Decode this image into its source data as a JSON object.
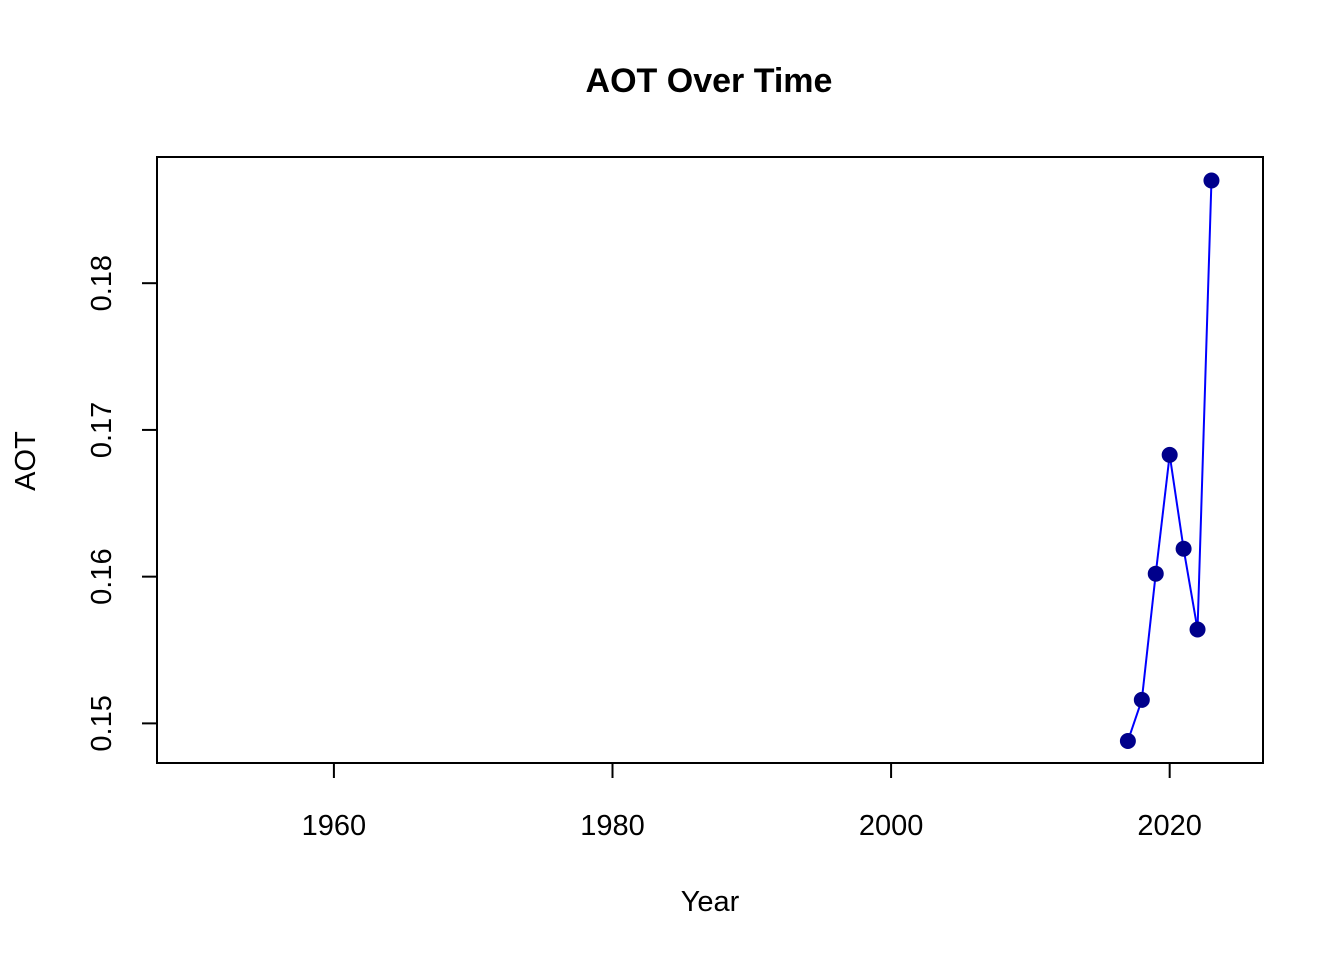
{
  "chart_data": {
    "type": "line",
    "title": "AOT Over Time",
    "xlabel": "Year",
    "ylabel": "AOT",
    "xlim": [
      1947.3,
      2026.7
    ],
    "ylim": [
      0.1473,
      0.1886
    ],
    "x_ticks": [
      1960,
      1980,
      2000,
      2020
    ],
    "x_tick_labels": [
      "1960",
      "1980",
      "2000",
      "2020"
    ],
    "y_ticks": [
      0.15,
      0.16,
      0.17,
      0.18
    ],
    "y_tick_labels": [
      "0.15",
      "0.16",
      "0.17",
      "0.18"
    ],
    "grid": false,
    "series": [
      {
        "x": [
          2017,
          2018,
          2019,
          2020,
          2021,
          2022,
          2023
        ],
        "values": [
          0.1488,
          0.1516,
          0.1602,
          0.1683,
          0.1619,
          0.1564,
          0.187
        ],
        "line_color": "#0000ff",
        "marker_color": "#00008b"
      }
    ]
  }
}
